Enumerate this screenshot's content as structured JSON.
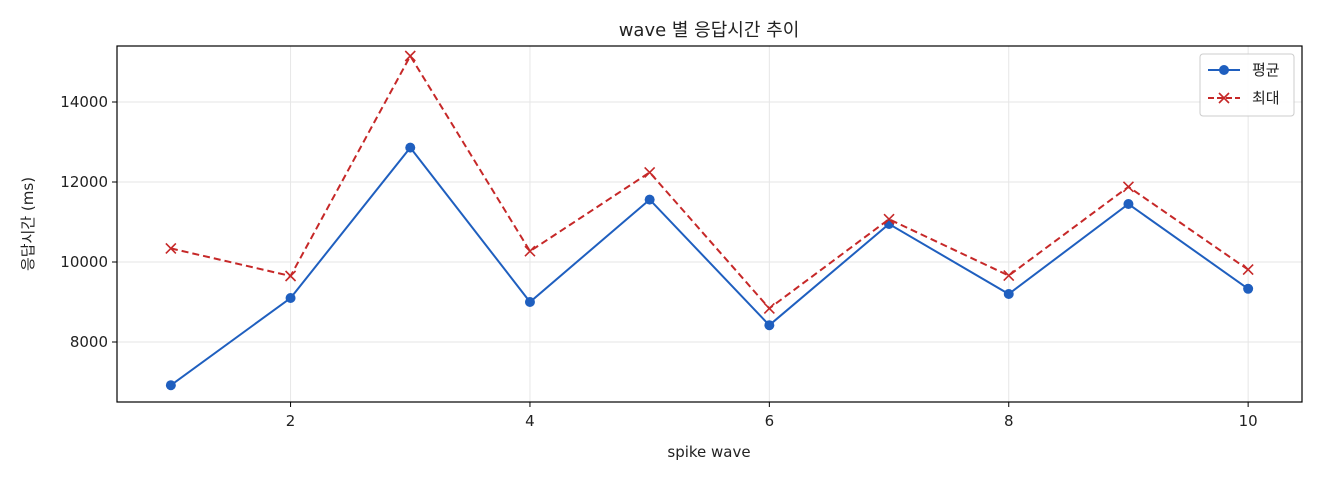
{
  "colors": {
    "avg": "#1f5fbf",
    "max": "#c62828",
    "grid": "#e6e6e6",
    "axis": "#000000"
  },
  "chart_data": {
    "type": "line",
    "title": "wave 별 응답시간 추이",
    "xlabel": "spike wave",
    "ylabel": "응답시간 (ms)",
    "x": [
      1,
      2,
      3,
      4,
      5,
      6,
      7,
      8,
      9,
      10
    ],
    "xlim": [
      0.55,
      10.45
    ],
    "ylim": [
      6500,
      15400
    ],
    "xticks": [
      2,
      4,
      6,
      8,
      10
    ],
    "yticks": [
      8000,
      10000,
      12000,
      14000
    ],
    "grid": true,
    "legend_position": "top-right",
    "series": [
      {
        "name": "평균",
        "marker": "circle",
        "line_style": "solid",
        "color": "#1f5fbf",
        "values": [
          6920,
          9100,
          12860,
          9000,
          11560,
          8420,
          10950,
          9200,
          11450,
          9330
        ]
      },
      {
        "name": "최대",
        "marker": "x",
        "line_style": "dashed",
        "color": "#c62828",
        "values": [
          10340,
          9650,
          15150,
          10270,
          12240,
          8840,
          11070,
          9660,
          11880,
          9810
        ]
      }
    ]
  }
}
